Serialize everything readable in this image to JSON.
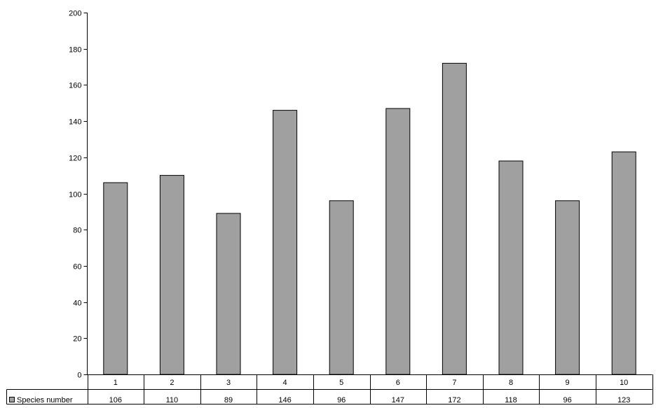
{
  "chart_data": {
    "type": "bar",
    "categories": [
      "1",
      "2",
      "3",
      "4",
      "5",
      "6",
      "7",
      "8",
      "9",
      "10"
    ],
    "series": [
      {
        "name": "Species number",
        "values": [
          106,
          110,
          89,
          146,
          96,
          147,
          172,
          118,
          96,
          123
        ]
      }
    ],
    "ylim": [
      0,
      200
    ],
    "yticks": [
      "0",
      "20",
      "40",
      "60",
      "80",
      "100",
      "120",
      "140",
      "160",
      "180",
      "200"
    ],
    "data_table": {
      "rows": [
        {
          "label": "Species number",
          "cells": [
            "106",
            "110",
            "89",
            "146",
            "96",
            "147",
            "172",
            "118",
            "96",
            "123"
          ]
        }
      ]
    },
    "bar_color": "#a0a0a0",
    "grid": false
  }
}
